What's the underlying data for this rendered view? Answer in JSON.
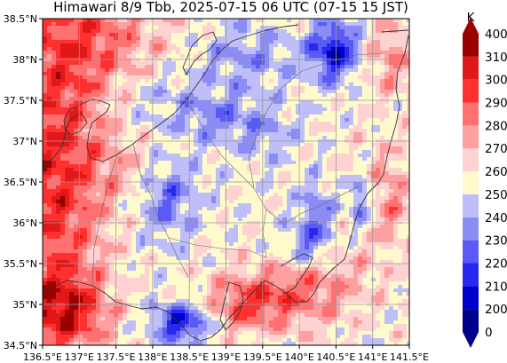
{
  "map": {
    "title": "Himawari 8/9 Tbb, 2025-07-15 06 UTC (07-15 15 JST)",
    "lon_range": [
      136.5,
      141.5
    ],
    "lat_range": [
      34.5,
      38.5
    ],
    "lon_ticks": [
      {
        "value": 136.5,
        "label": "136.5°E"
      },
      {
        "value": 137.0,
        "label": "137°E"
      },
      {
        "value": 137.5,
        "label": "137.5°E"
      },
      {
        "value": 138.0,
        "label": "138°E"
      },
      {
        "value": 138.5,
        "label": "138.5°E"
      },
      {
        "value": 139.0,
        "label": "139°E"
      },
      {
        "value": 139.5,
        "label": "139.5°E"
      },
      {
        "value": 140.0,
        "label": "140°E"
      },
      {
        "value": 140.5,
        "label": "140.5°E"
      },
      {
        "value": 141.0,
        "label": "141°E"
      },
      {
        "value": 141.5,
        "label": "141.5°E"
      }
    ],
    "lat_ticks": [
      {
        "value": 38.5,
        "label": "38.5°N"
      },
      {
        "value": 38.0,
        "label": "38°N"
      },
      {
        "value": 37.5,
        "label": "37.5°N"
      },
      {
        "value": 37.0,
        "label": "37°N"
      },
      {
        "value": 36.5,
        "label": "36.5°N"
      },
      {
        "value": 36.0,
        "label": "36°N"
      },
      {
        "value": 35.5,
        "label": "35.5°N"
      },
      {
        "value": 35.0,
        "label": "35°N"
      },
      {
        "value": 34.5,
        "label": "34.5°N"
      }
    ],
    "gridlines": true,
    "colorbar": {
      "unit": "K",
      "levels": [
        0,
        200,
        210,
        220,
        230,
        240,
        250,
        260,
        270,
        280,
        290,
        300,
        310,
        400
      ],
      "labels": [
        "400",
        "310",
        "300",
        "290",
        "280",
        "270",
        "260",
        "250",
        "240",
        "230",
        "220",
        "210",
        "200",
        "0"
      ],
      "colors": [
        "#00008b",
        "#0000cd",
        "#2828f0",
        "#5a5af5",
        "#8c8cf5",
        "#bebef8",
        "#fffacc",
        "#ffd2d2",
        "#ffa0a0",
        "#ff7070",
        "#ff3030",
        "#e01818",
        "#9b0000"
      ]
    }
  }
}
